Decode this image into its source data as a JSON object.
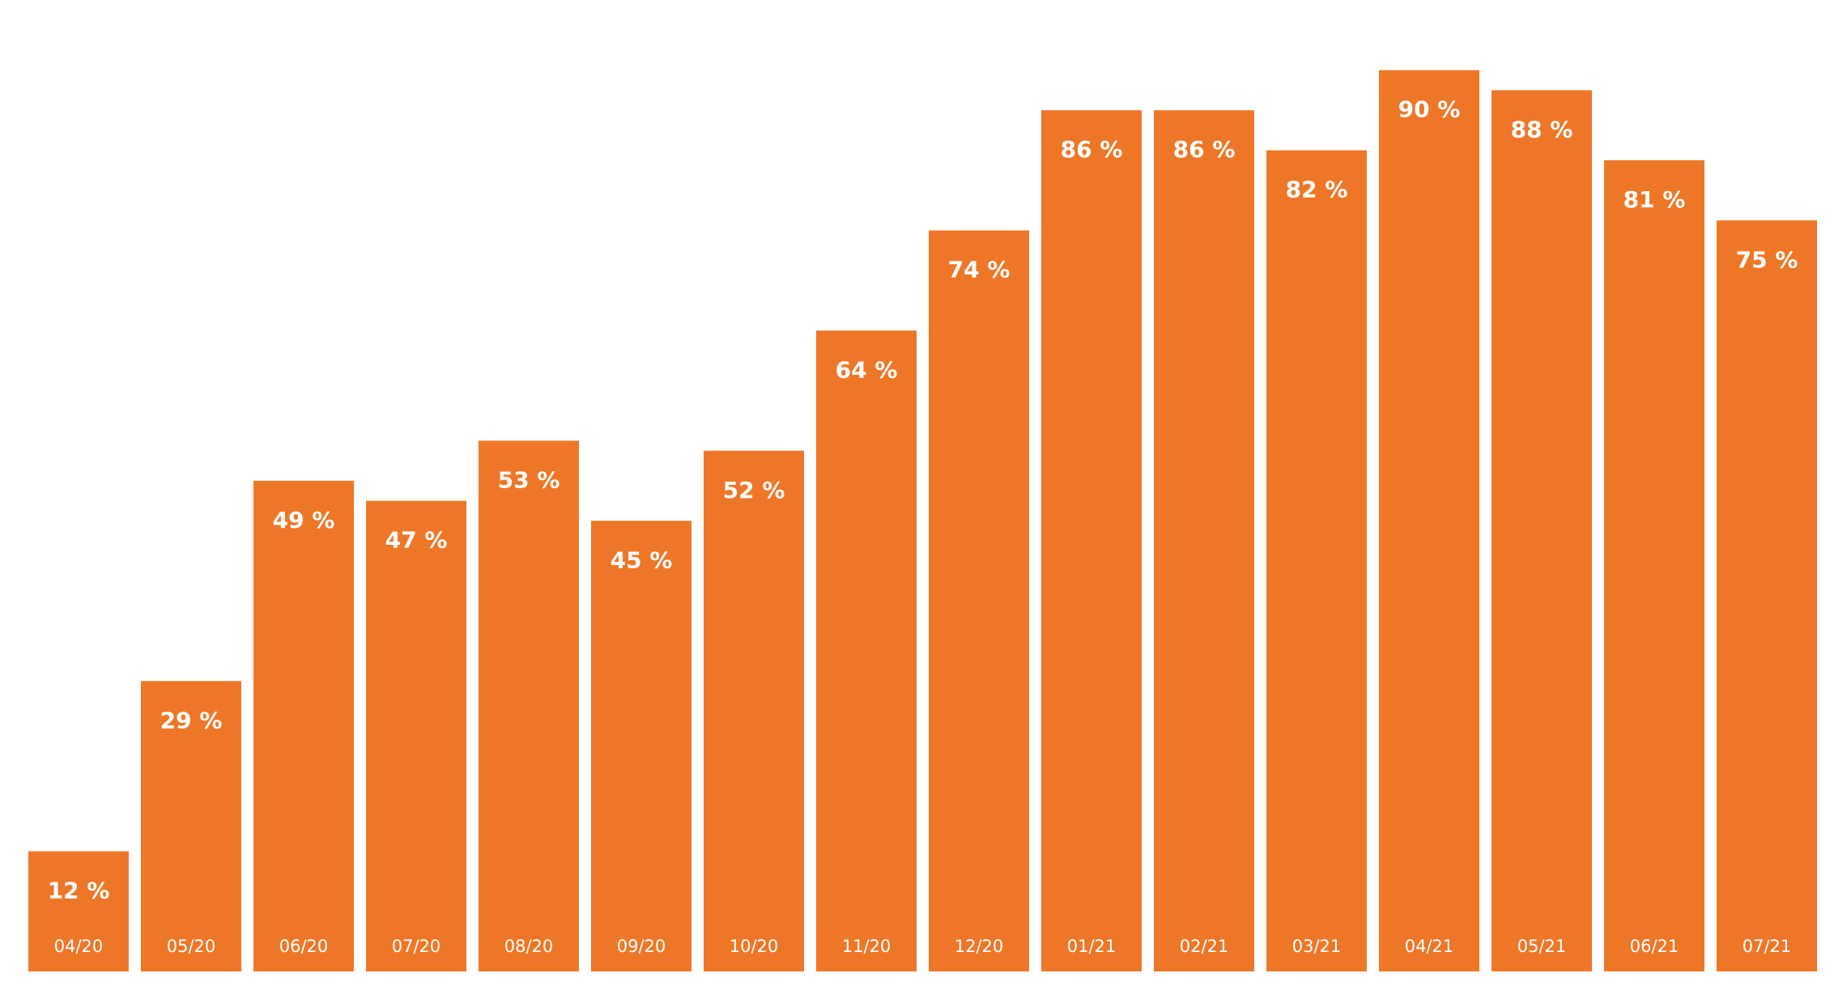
{
  "chart_data": {
    "type": "bar",
    "categories": [
      "04/20",
      "05/20",
      "06/20",
      "07/20",
      "08/20",
      "09/20",
      "10/20",
      "11/20",
      "12/20",
      "01/21",
      "02/21",
      "03/21",
      "04/21",
      "05/21",
      "06/21",
      "07/21"
    ],
    "values": [
      12,
      29,
      49,
      47,
      53,
      45,
      52,
      64,
      74,
      86,
      86,
      82,
      90,
      88,
      81,
      75
    ],
    "value_labels": [
      "12 %",
      "29 %",
      "49 %",
      "47 %",
      "53 %",
      "45 %",
      "52 %",
      "64 %",
      "74 %",
      "86 %",
      "86 %",
      "82 %",
      "90 %",
      "88 %",
      "81 %",
      "75 %"
    ],
    "color": "#ee7727"
  }
}
